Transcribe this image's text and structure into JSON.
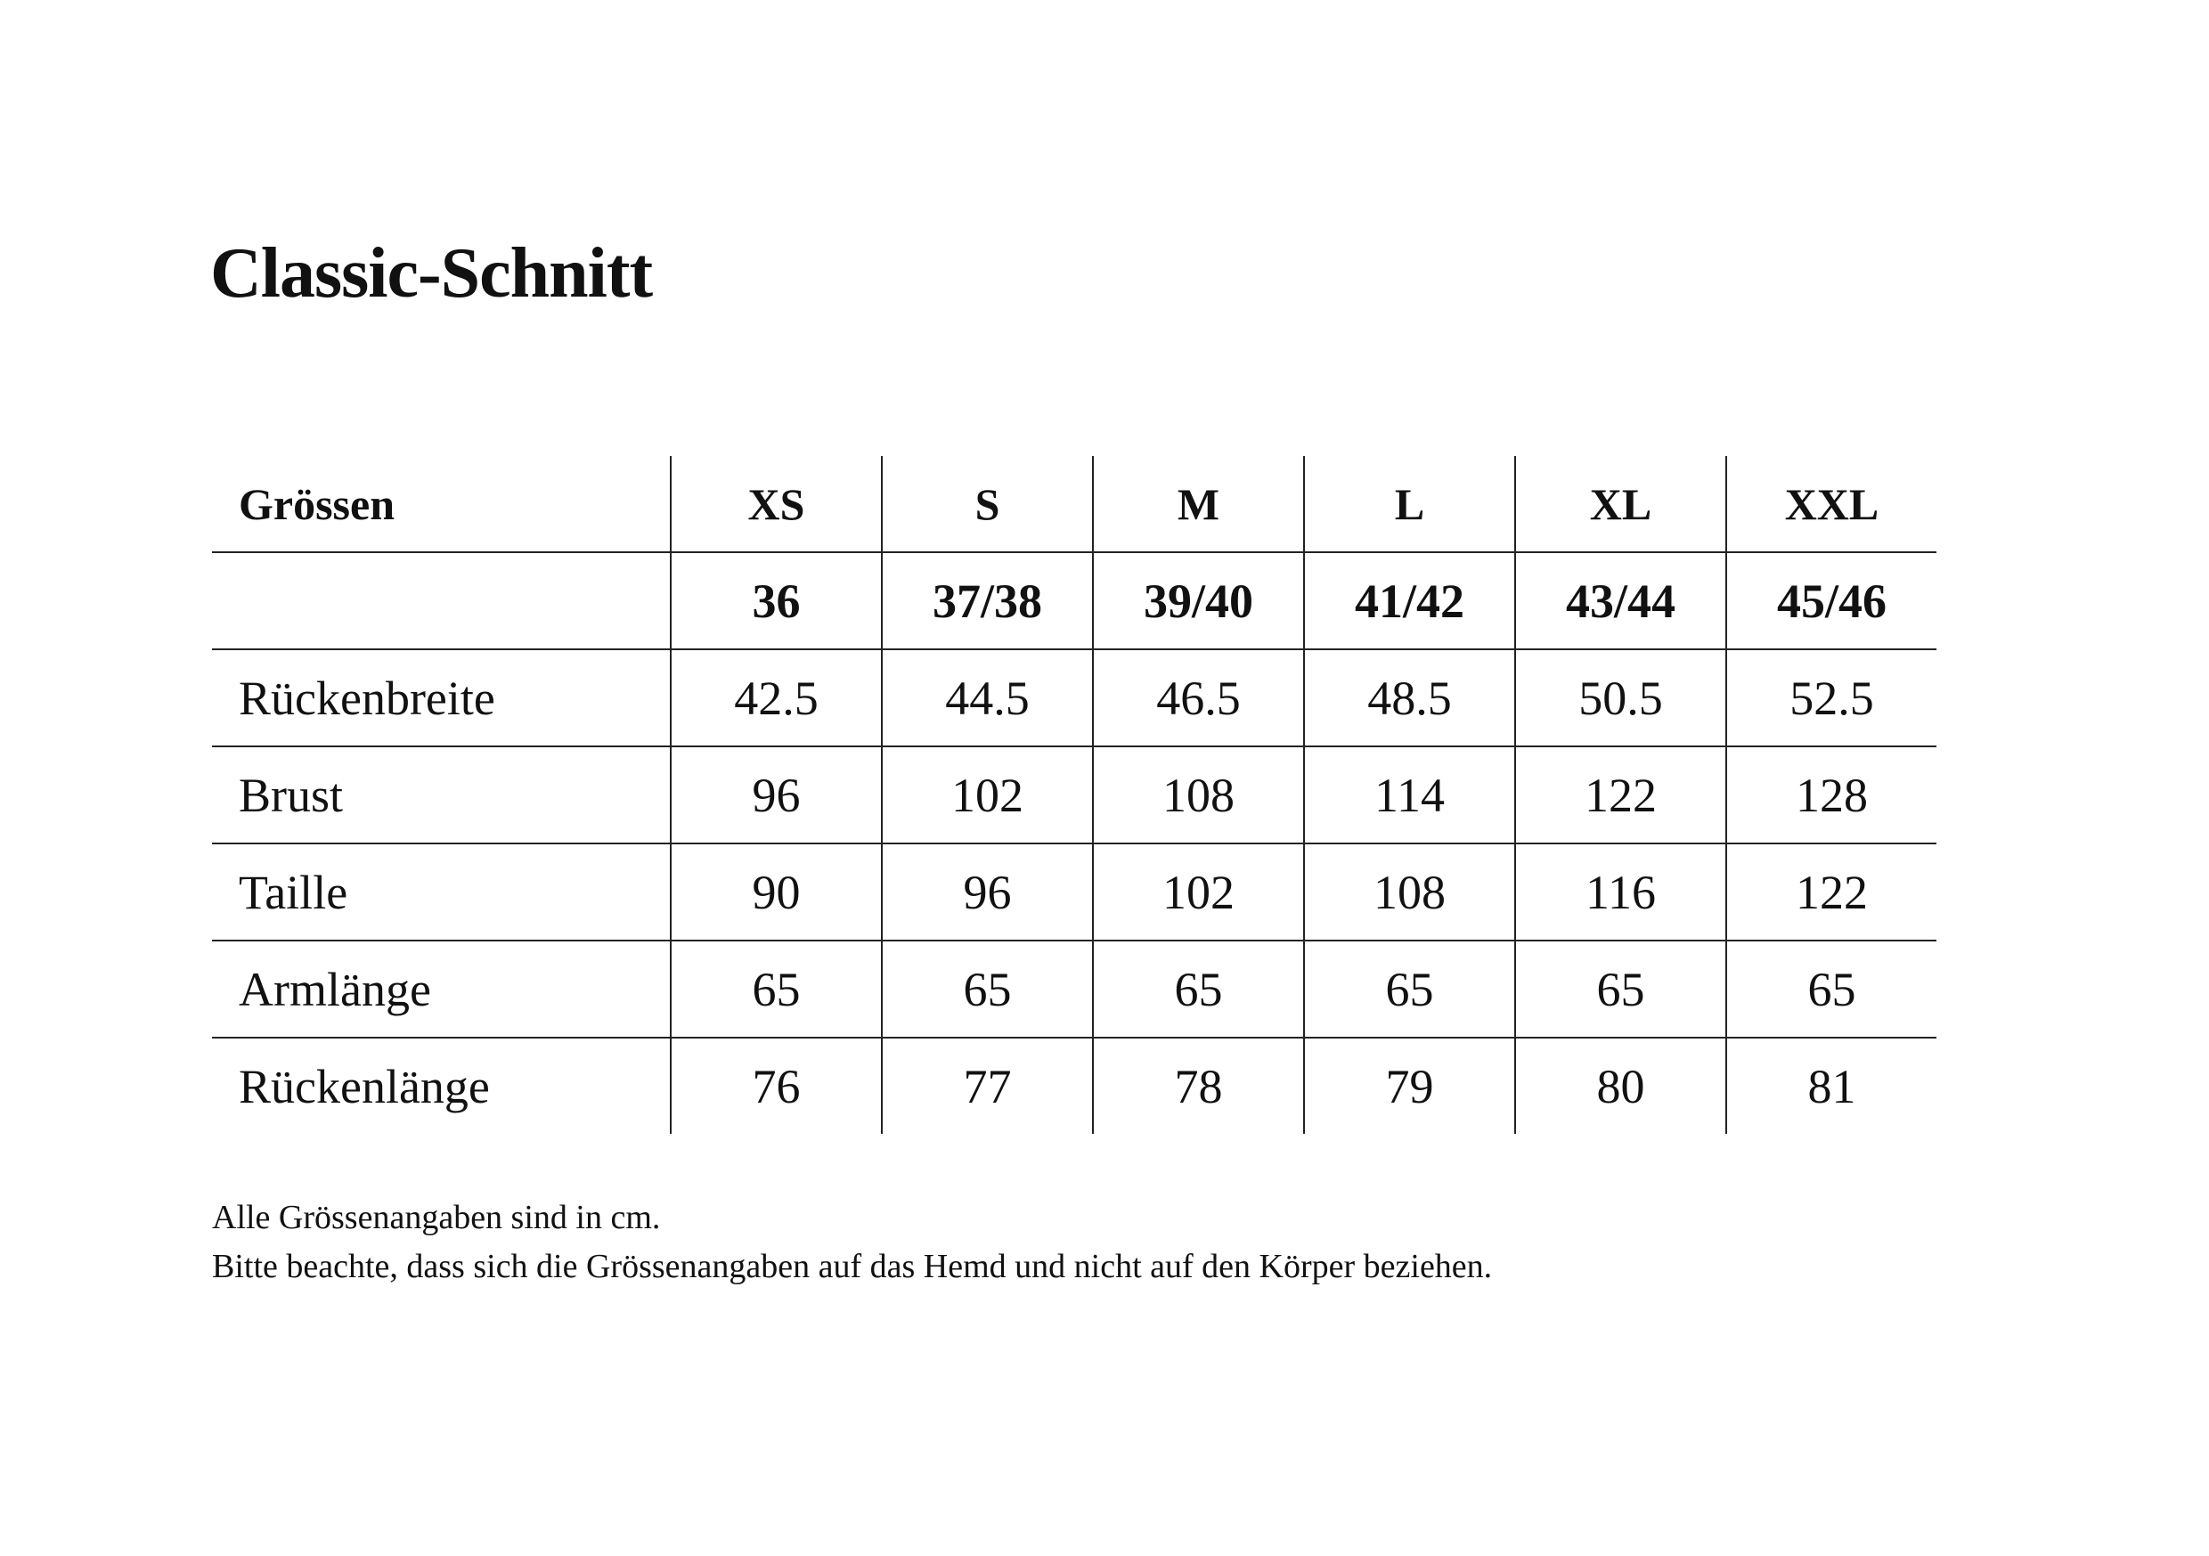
{
  "title": "Classic-Schnitt",
  "table": {
    "header_label": "Grössen",
    "sizes": [
      "XS",
      "S",
      "M",
      "L",
      "XL",
      "XXL"
    ],
    "eu_sizes": [
      "36",
      "37/38",
      "39/40",
      "41/42",
      "43/44",
      "45/46"
    ],
    "rows": [
      {
        "label": "Rückenbreite",
        "values": [
          "42.5",
          "44.5",
          "46.5",
          "48.5",
          "50.5",
          "52.5"
        ]
      },
      {
        "label": "Brust",
        "values": [
          "96",
          "102",
          "108",
          "114",
          "122",
          "128"
        ]
      },
      {
        "label": "Taille",
        "values": [
          "90",
          "96",
          "102",
          "108",
          "116",
          "122"
        ]
      },
      {
        "label": "Armlänge",
        "values": [
          "65",
          "65",
          "65",
          "65",
          "65",
          "65"
        ]
      },
      {
        "label": "Rückenlänge",
        "values": [
          "76",
          "77",
          "78",
          "79",
          "80",
          "81"
        ]
      }
    ]
  },
  "notes": [
    "Alle Grössenangaben sind in cm.",
    "Bitte beachte, dass sich die Grössenangaben auf das Hemd und nicht auf den Körper beziehen."
  ]
}
